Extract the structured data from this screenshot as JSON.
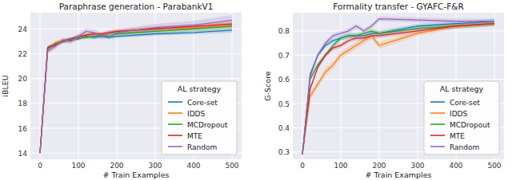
{
  "chart_data": [
    {
      "type": "line",
      "title": "Paraphrase generation - ParabankV1",
      "x_label": "# Train Examples",
      "y_label": "iBLEU",
      "x": [
        0,
        20,
        40,
        60,
        80,
        100,
        120,
        140,
        160,
        180,
        200,
        300,
        400,
        500
      ],
      "xlim": [
        -25,
        525
      ],
      "xticks": [
        0,
        100,
        200,
        300,
        400,
        500
      ],
      "ylim": [
        13.5,
        25.3
      ],
      "yticks": [
        14,
        16,
        18,
        20,
        22,
        24
      ],
      "grid": true,
      "legend": "lower right",
      "legend_title": "AL strategy",
      "series": [
        {
          "name": "Core-set",
          "color": "#1f77b4",
          "values": [
            14,
            22.5,
            22.8,
            23.0,
            23.1,
            23.2,
            23.4,
            23.3,
            23.4,
            23.3,
            23.4,
            23.6,
            23.7,
            23.9
          ],
          "errors": [
            0,
            0.15,
            0.15,
            0.15,
            0.15,
            0.15,
            0.15,
            0.15,
            0.15,
            0.15,
            0.15,
            0.15,
            0.15,
            0.2
          ]
        },
        {
          "name": "IDDS",
          "color": "#ff7f0e",
          "values": [
            14,
            22.3,
            22.9,
            23.1,
            23.0,
            23.3,
            23.5,
            23.6,
            23.5,
            23.7,
            23.8,
            24.0,
            24.1,
            24.3
          ],
          "errors": [
            0,
            0.2,
            0.15,
            0.15,
            0.15,
            0.15,
            0.15,
            0.15,
            0.15,
            0.15,
            0.15,
            0.2,
            0.2,
            0.2
          ]
        },
        {
          "name": "MCDropout",
          "color": "#2ca02c",
          "values": [
            14,
            22.4,
            22.8,
            23.0,
            23.2,
            23.3,
            23.3,
            23.4,
            23.5,
            23.4,
            23.6,
            23.8,
            24.0,
            24.2
          ],
          "errors": [
            0,
            0.15,
            0.15,
            0.15,
            0.15,
            0.15,
            0.15,
            0.15,
            0.15,
            0.15,
            0.15,
            0.15,
            0.2,
            0.2
          ]
        },
        {
          "name": "MTE",
          "color": "#d62728",
          "values": [
            14,
            22.5,
            22.7,
            23.0,
            23.2,
            23.4,
            23.5,
            23.6,
            23.6,
            23.7,
            23.8,
            24.0,
            24.2,
            24.4
          ],
          "errors": [
            0,
            0.15,
            0.15,
            0.15,
            0.15,
            0.15,
            0.15,
            0.15,
            0.15,
            0.15,
            0.15,
            0.2,
            0.2,
            0.2
          ]
        },
        {
          "name": "Random",
          "color": "#9467bd",
          "values": [
            14,
            22.2,
            22.6,
            23.1,
            23.0,
            23.4,
            23.8,
            23.7,
            23.4,
            23.6,
            23.7,
            24.1,
            24.3,
            24.7
          ],
          "errors": [
            0,
            0.25,
            0.25,
            0.2,
            0.2,
            0.25,
            0.25,
            0.25,
            0.25,
            0.25,
            0.25,
            0.3,
            0.35,
            0.4
          ]
        }
      ]
    },
    {
      "type": "line",
      "title": "Formality transfer - GYAFC-F&R",
      "x_label": "# Train Examples",
      "y_label": "G-Score",
      "x": [
        0,
        20,
        40,
        60,
        80,
        100,
        120,
        140,
        160,
        180,
        200,
        300,
        400,
        500
      ],
      "xlim": [
        -25,
        525
      ],
      "xticks": [
        0,
        100,
        200,
        300,
        400,
        500
      ],
      "ylim": [
        0.27,
        0.875
      ],
      "yticks": [
        {
          "value": 0.3,
          "label": "0.3"
        },
        {
          "value": 0.4,
          "label": "0.4"
        },
        {
          "value": 0.5,
          "label": "0.5"
        },
        {
          "value": 0.6,
          "label": "0.6"
        },
        {
          "value": 0.7,
          "label": "0.7"
        },
        {
          "value": 0.8,
          "label": "0.8"
        }
      ],
      "grid": true,
      "legend": "lower right",
      "legend_title": "AL strategy",
      "series": [
        {
          "name": "Core-set",
          "color": "#1f77b4",
          "values": [
            0.29,
            0.62,
            0.7,
            0.74,
            0.76,
            0.77,
            0.78,
            0.78,
            0.78,
            0.79,
            0.79,
            0.82,
            0.83,
            0.84
          ],
          "errors": [
            0,
            0.01,
            0.01,
            0.01,
            0.01,
            0.01,
            0.01,
            0.01,
            0.01,
            0.01,
            0.01,
            0.01,
            0.01,
            0.01
          ]
        },
        {
          "name": "IDDS",
          "color": "#ff7f0e",
          "values": [
            0.29,
            0.53,
            0.58,
            0.63,
            0.66,
            0.7,
            0.72,
            0.74,
            0.76,
            0.78,
            0.74,
            0.79,
            0.82,
            0.83
          ],
          "errors": [
            0,
            0.015,
            0.015,
            0.015,
            0.015,
            0.015,
            0.015,
            0.015,
            0.015,
            0.015,
            0.015,
            0.01,
            0.01,
            0.01
          ]
        },
        {
          "name": "MCDropout",
          "color": "#2ca02c",
          "values": [
            0.29,
            0.6,
            0.66,
            0.7,
            0.74,
            0.77,
            0.78,
            0.78,
            0.79,
            0.8,
            0.79,
            0.81,
            0.82,
            0.83
          ],
          "errors": [
            0,
            0.01,
            0.01,
            0.01,
            0.01,
            0.01,
            0.01,
            0.01,
            0.01,
            0.01,
            0.01,
            0.01,
            0.01,
            0.01
          ]
        },
        {
          "name": "MTE",
          "color": "#d62728",
          "values": [
            0.29,
            0.56,
            0.65,
            0.7,
            0.73,
            0.74,
            0.76,
            0.77,
            0.77,
            0.78,
            0.78,
            0.8,
            0.82,
            0.83
          ],
          "errors": [
            0,
            0.01,
            0.01,
            0.01,
            0.01,
            0.01,
            0.01,
            0.01,
            0.01,
            0.01,
            0.01,
            0.01,
            0.01,
            0.01
          ]
        },
        {
          "name": "Random",
          "color": "#9467bd",
          "values": [
            0.29,
            0.61,
            0.7,
            0.75,
            0.78,
            0.79,
            0.8,
            0.82,
            0.8,
            0.82,
            0.85,
            0.845,
            0.84,
            0.84
          ],
          "errors": [
            0,
            0.01,
            0.01,
            0.01,
            0.01,
            0.01,
            0.01,
            0.01,
            0.01,
            0.01,
            0.01,
            0.01,
            0.01,
            0.01
          ]
        }
      ]
    }
  ]
}
